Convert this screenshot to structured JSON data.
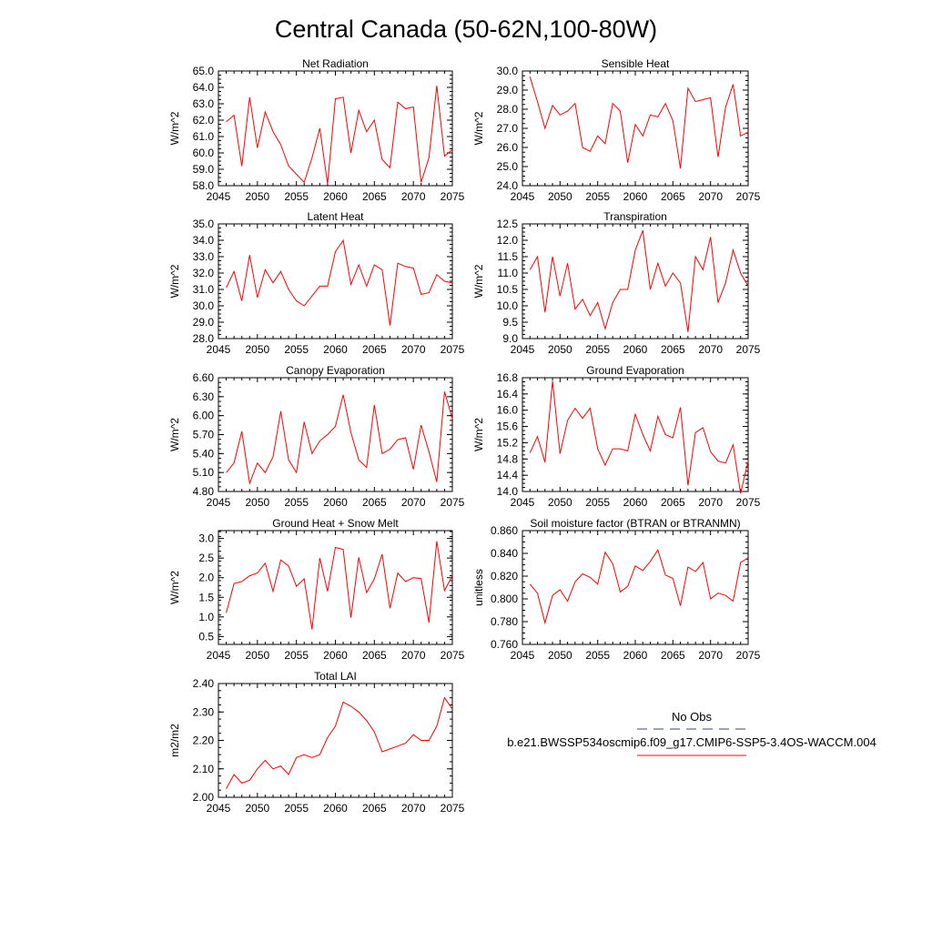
{
  "title": "Central Canada (50-62N,100-80W)",
  "colors": {
    "model_line": "#ff0000",
    "obs_line": "#3c3c8c",
    "axis": "#000000"
  },
  "legend": {
    "obs_label": "No Obs",
    "model_label": "b.e21.BWSSP534oscmip6.f09_g17.CMIP6-SSP5-3.4OS-WACCM.004"
  },
  "chart_data": [
    {
      "type": "line",
      "title": "Net Radiation",
      "ylabel": "W/m^2",
      "xlim": [
        2045,
        2075
      ],
      "ylim": [
        58.0,
        65.0
      ],
      "xticks": [
        "2045",
        "2050",
        "2055",
        "2060",
        "2065",
        "2070",
        "2075"
      ],
      "yticks": [
        "58.0",
        "59.0",
        "60.0",
        "61.0",
        "62.0",
        "63.0",
        "64.0",
        "65.0"
      ],
      "x": [
        2046,
        2047,
        2048,
        2049,
        2050,
        2051,
        2052,
        2053,
        2054,
        2055,
        2056,
        2057,
        2058,
        2059,
        2060,
        2061,
        2062,
        2063,
        2064,
        2065,
        2066,
        2067,
        2068,
        2069,
        2070,
        2071,
        2072,
        2073,
        2074,
        2075
      ],
      "y": [
        61.9,
        62.3,
        59.2,
        63.4,
        60.3,
        62.5,
        61.3,
        60.5,
        59.2,
        58.7,
        58.2,
        59.7,
        61.5,
        58.1,
        63.3,
        63.4,
        60.0,
        62.6,
        61.3,
        62.0,
        59.6,
        59.1,
        63.1,
        62.7,
        62.8,
        58.2,
        59.7,
        64.1,
        59.8,
        60.2
      ]
    },
    {
      "type": "line",
      "title": "Sensible Heat",
      "ylabel": "W/m^2",
      "xlim": [
        2045,
        2075
      ],
      "ylim": [
        24.0,
        30.0
      ],
      "xticks": [
        "2045",
        "2050",
        "2055",
        "2060",
        "2065",
        "2070",
        "2075"
      ],
      "yticks": [
        "24.0",
        "25.0",
        "26.0",
        "27.0",
        "28.0",
        "29.0",
        "30.0"
      ],
      "x": [
        2046,
        2047,
        2048,
        2049,
        2050,
        2051,
        2052,
        2053,
        2054,
        2055,
        2056,
        2057,
        2058,
        2059,
        2060,
        2061,
        2062,
        2063,
        2064,
        2065,
        2066,
        2067,
        2068,
        2069,
        2070,
        2071,
        2072,
        2073,
        2074,
        2075
      ],
      "y": [
        29.7,
        28.4,
        27.0,
        28.2,
        27.7,
        27.9,
        28.3,
        26.0,
        25.8,
        26.6,
        26.2,
        28.3,
        27.9,
        25.2,
        27.2,
        26.6,
        27.7,
        27.6,
        28.3,
        27.4,
        24.9,
        29.1,
        28.4,
        28.5,
        28.6,
        25.5,
        28.1,
        29.3,
        26.6,
        26.8
      ]
    },
    {
      "type": "line",
      "title": "Latent Heat",
      "ylabel": "W/m^2",
      "xlim": [
        2045,
        2075
      ],
      "ylim": [
        28.0,
        35.0
      ],
      "xticks": [
        "2045",
        "2050",
        "2055",
        "2060",
        "2065",
        "2070",
        "2075"
      ],
      "yticks": [
        "28.0",
        "29.0",
        "30.0",
        "31.0",
        "32.0",
        "33.0",
        "34.0",
        "35.0"
      ],
      "x": [
        2046,
        2047,
        2048,
        2049,
        2050,
        2051,
        2052,
        2053,
        2054,
        2055,
        2056,
        2057,
        2058,
        2059,
        2060,
        2061,
        2062,
        2063,
        2064,
        2065,
        2066,
        2067,
        2068,
        2069,
        2070,
        2071,
        2072,
        2073,
        2074,
        2075
      ],
      "y": [
        31.1,
        32.1,
        30.3,
        33.1,
        30.5,
        32.2,
        31.4,
        32.1,
        31.0,
        30.3,
        30.0,
        30.6,
        31.2,
        31.2,
        33.3,
        34.0,
        31.3,
        32.5,
        31.2,
        32.5,
        32.2,
        28.8,
        32.6,
        32.4,
        32.3,
        30.7,
        30.8,
        31.9,
        31.5,
        31.4
      ]
    },
    {
      "type": "line",
      "title": "Transpiration",
      "ylabel": "W/m^2",
      "xlim": [
        2045,
        2075
      ],
      "ylim": [
        9.0,
        12.5
      ],
      "xticks": [
        "2045",
        "2050",
        "2055",
        "2060",
        "2065",
        "2070",
        "2075"
      ],
      "yticks": [
        "9.0",
        "9.5",
        "10.0",
        "10.5",
        "11.0",
        "11.5",
        "12.0",
        "12.5"
      ],
      "x": [
        2046,
        2047,
        2048,
        2049,
        2050,
        2051,
        2052,
        2053,
        2054,
        2055,
        2056,
        2057,
        2058,
        2059,
        2060,
        2061,
        2062,
        2063,
        2064,
        2065,
        2066,
        2067,
        2068,
        2069,
        2070,
        2071,
        2072,
        2073,
        2074,
        2075
      ],
      "y": [
        11.1,
        11.5,
        9.8,
        11.5,
        10.3,
        11.3,
        9.9,
        10.2,
        9.7,
        10.1,
        9.3,
        10.1,
        10.5,
        10.5,
        11.7,
        12.3,
        10.5,
        11.3,
        10.6,
        11.0,
        10.7,
        9.2,
        11.5,
        11.1,
        12.1,
        10.1,
        10.7,
        11.7,
        11.0,
        10.6
      ]
    },
    {
      "type": "line",
      "title": "Canopy Evaporation",
      "ylabel": "W/m^2",
      "xlim": [
        2045,
        2075
      ],
      "ylim": [
        4.8,
        6.6
      ],
      "xticks": [
        "2045",
        "2050",
        "2055",
        "2060",
        "2065",
        "2070",
        "2075"
      ],
      "yticks": [
        "4.80",
        "5.10",
        "5.40",
        "5.70",
        "6.00",
        "6.30",
        "6.60"
      ],
      "x": [
        2046,
        2047,
        2048,
        2049,
        2050,
        2051,
        2052,
        2053,
        2054,
        2055,
        2056,
        2057,
        2058,
        2059,
        2060,
        2061,
        2062,
        2063,
        2064,
        2065,
        2066,
        2067,
        2068,
        2069,
        2070,
        2071,
        2072,
        2073,
        2074,
        2075
      ],
      "y": [
        5.1,
        5.25,
        5.75,
        4.93,
        5.25,
        5.1,
        5.35,
        6.07,
        5.3,
        5.1,
        5.9,
        5.4,
        5.6,
        5.7,
        5.83,
        6.33,
        5.73,
        5.3,
        5.18,
        6.17,
        5.4,
        5.47,
        5.62,
        5.65,
        5.15,
        5.85,
        5.43,
        4.95,
        6.38,
        5.95
      ]
    },
    {
      "type": "line",
      "title": "Ground Evaporation",
      "ylabel": "W/m^2",
      "xlim": [
        2045,
        2075
      ],
      "ylim": [
        14.0,
        16.8
      ],
      "xticks": [
        "2045",
        "2050",
        "2055",
        "2060",
        "2065",
        "2070",
        "2075"
      ],
      "yticks": [
        "14.0",
        "14.4",
        "14.8",
        "15.2",
        "15.6",
        "16.0",
        "16.4",
        "16.8"
      ],
      "x": [
        2046,
        2047,
        2048,
        2049,
        2050,
        2051,
        2052,
        2053,
        2054,
        2055,
        2056,
        2057,
        2058,
        2059,
        2060,
        2061,
        2062,
        2063,
        2064,
        2065,
        2066,
        2067,
        2068,
        2069,
        2070,
        2071,
        2072,
        2073,
        2074,
        2075
      ],
      "y": [
        14.95,
        15.35,
        14.72,
        16.72,
        14.93,
        15.75,
        16.05,
        15.8,
        16.05,
        15.05,
        14.65,
        15.05,
        15.05,
        15.0,
        15.9,
        15.4,
        15.0,
        15.85,
        15.4,
        15.32,
        16.07,
        14.15,
        15.45,
        15.57,
        14.98,
        14.75,
        14.7,
        15.15,
        13.95,
        14.75
      ]
    },
    {
      "type": "line",
      "title": "Ground Heat + Snow Melt",
      "ylabel": "W/m^2",
      "xlim": [
        2045,
        2075
      ],
      "ylim": [
        0.3,
        3.2
      ],
      "xticks": [
        "2045",
        "2050",
        "2055",
        "2060",
        "2065",
        "2070",
        "2075"
      ],
      "yticks": [
        "0.5",
        "1.0",
        "1.5",
        "2.0",
        "2.5",
        "3.0"
      ],
      "x": [
        2046,
        2047,
        2048,
        2049,
        2050,
        2051,
        2052,
        2053,
        2054,
        2055,
        2056,
        2057,
        2058,
        2059,
        2060,
        2061,
        2062,
        2063,
        2064,
        2065,
        2066,
        2067,
        2068,
        2069,
        2070,
        2071,
        2072,
        2073,
        2074,
        2075
      ],
      "y": [
        1.1,
        1.85,
        1.9,
        2.05,
        2.12,
        2.37,
        1.65,
        2.45,
        2.3,
        1.78,
        1.97,
        0.68,
        2.5,
        1.65,
        2.77,
        2.72,
        0.98,
        2.52,
        1.62,
        1.97,
        2.6,
        1.22,
        2.12,
        1.9,
        2.0,
        1.98,
        0.86,
        2.93,
        1.67,
        2.05
      ]
    },
    {
      "type": "line",
      "title": "Soil moisture factor (BTRAN or BTRANMN)",
      "ylabel": "unitless",
      "xlim": [
        2045,
        2075
      ],
      "ylim": [
        0.76,
        0.86
      ],
      "xticks": [
        "2045",
        "2050",
        "2055",
        "2060",
        "2065",
        "2070",
        "2075"
      ],
      "yticks": [
        "0.760",
        "0.780",
        "0.800",
        "0.820",
        "0.840",
        "0.860"
      ],
      "x": [
        2046,
        2047,
        2048,
        2049,
        2050,
        2051,
        2052,
        2053,
        2054,
        2055,
        2056,
        2057,
        2058,
        2059,
        2060,
        2061,
        2062,
        2063,
        2064,
        2065,
        2066,
        2067,
        2068,
        2069,
        2070,
        2071,
        2072,
        2073,
        2074,
        2075
      ],
      "y": [
        0.813,
        0.805,
        0.779,
        0.803,
        0.808,
        0.798,
        0.815,
        0.822,
        0.819,
        0.813,
        0.841,
        0.831,
        0.806,
        0.811,
        0.829,
        0.825,
        0.833,
        0.843,
        0.821,
        0.818,
        0.794,
        0.828,
        0.824,
        0.832,
        0.8,
        0.805,
        0.803,
        0.798,
        0.832,
        0.836
      ]
    },
    {
      "type": "line",
      "title": "Total LAI",
      "ylabel": "m2/m2",
      "xlim": [
        2045,
        2075
      ],
      "ylim": [
        2.0,
        2.4
      ],
      "xticks": [
        "2045",
        "2050",
        "2055",
        "2060",
        "2065",
        "2070",
        "2075"
      ],
      "yticks": [
        "2.00",
        "2.10",
        "2.20",
        "2.30",
        "2.40"
      ],
      "x": [
        2046,
        2047,
        2048,
        2049,
        2050,
        2051,
        2052,
        2053,
        2054,
        2055,
        2056,
        2057,
        2058,
        2059,
        2060,
        2061,
        2062,
        2063,
        2064,
        2065,
        2066,
        2067,
        2068,
        2069,
        2070,
        2071,
        2072,
        2073,
        2074,
        2075
      ],
      "y": [
        2.03,
        2.08,
        2.05,
        2.06,
        2.1,
        2.13,
        2.1,
        2.11,
        2.08,
        2.14,
        2.15,
        2.14,
        2.15,
        2.21,
        2.25,
        2.335,
        2.32,
        2.3,
        2.27,
        2.23,
        2.16,
        2.17,
        2.18,
        2.19,
        2.22,
        2.2,
        2.2,
        2.25,
        2.35,
        2.31
      ]
    }
  ]
}
